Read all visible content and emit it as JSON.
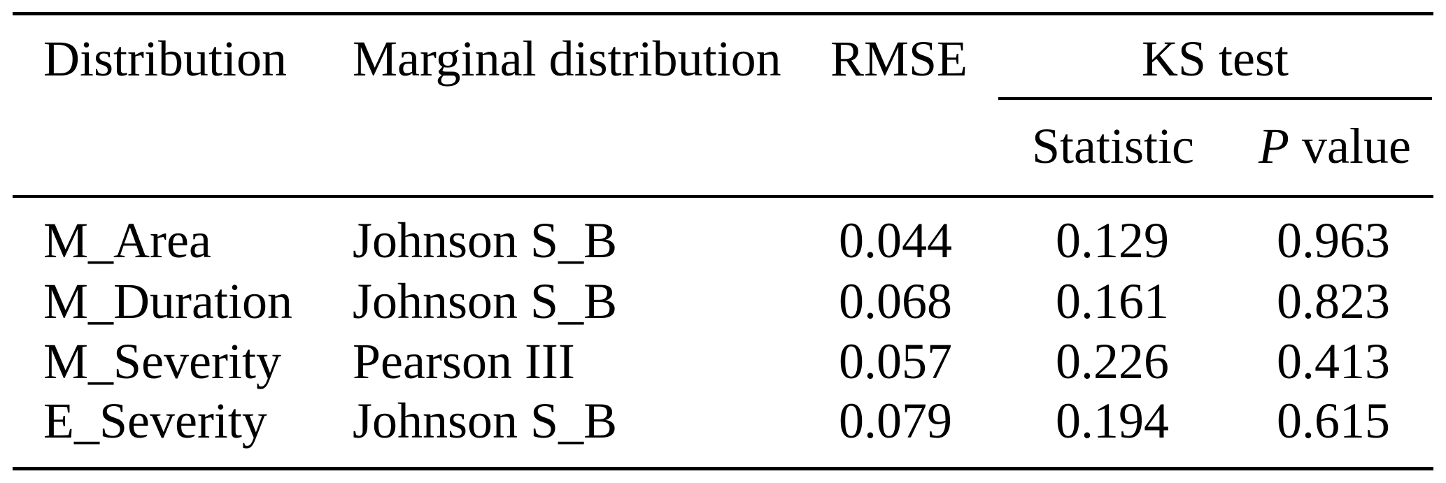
{
  "colors": {
    "text": "#000000",
    "background": "#ffffff",
    "rule": "#000000"
  },
  "table": {
    "headers": {
      "distribution": "Distribution",
      "marginal_distribution": "Marginal distribution",
      "rmse": "RMSE",
      "ks_test": "KS test",
      "statistic": "Statistic",
      "p_label": "P",
      "value_label": "value"
    },
    "rows": [
      {
        "distribution": "M_Area",
        "marginal": "Johnson S_B",
        "rmse": "0.044",
        "statistic": "0.129",
        "p_value": "0.963"
      },
      {
        "distribution": "M_Duration",
        "marginal": "Johnson S_B",
        "rmse": "0.068",
        "statistic": "0.161",
        "p_value": "0.823"
      },
      {
        "distribution": "M_Severity",
        "marginal": "Pearson III",
        "rmse": "0.057",
        "statistic": "0.226",
        "p_value": "0.413"
      },
      {
        "distribution": "E_Severity",
        "marginal": "Johnson S_B",
        "rmse": "0.079",
        "statistic": "0.194",
        "p_value": "0.615"
      }
    ]
  }
}
